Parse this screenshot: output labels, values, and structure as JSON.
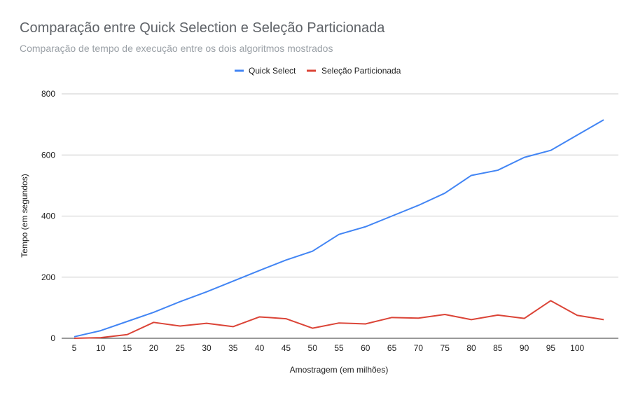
{
  "chart_data": {
    "type": "line",
    "title": "Comparação entre Quick Selection e Seleção Particionada",
    "subtitle": "Comparação de tempo de execução entre os dois algoritmos mostrados",
    "xlabel": "Amostragem (em milhões)",
    "ylabel": "Tempo (em segundos)",
    "categories": [
      "5",
      "10",
      "15",
      "20",
      "25",
      "30",
      "35",
      "40",
      "45",
      "50",
      "55",
      "60",
      "65",
      "70",
      "75",
      "80",
      "85",
      "90",
      "95",
      "100",
      ""
    ],
    "ylim": [
      0,
      800
    ],
    "yticks": [
      "0",
      "200",
      "400",
      "600",
      "800"
    ],
    "grid": true,
    "legend_position": "top",
    "series": [
      {
        "name": "Quick Select",
        "color": "#4285f4",
        "values": [
          5,
          25,
          55,
          85,
          120,
          152,
          187,
          222,
          256,
          285,
          340,
          365,
          400,
          435,
          475,
          533,
          550,
          592,
          615,
          665,
          715
        ]
      },
      {
        "name": "Seleção Particionada",
        "color": "#db4437",
        "values": [
          0,
          2,
          12,
          52,
          40,
          49,
          38,
          70,
          64,
          33,
          50,
          47,
          68,
          66,
          78,
          61,
          76,
          65,
          123,
          75,
          61
        ]
      }
    ]
  }
}
